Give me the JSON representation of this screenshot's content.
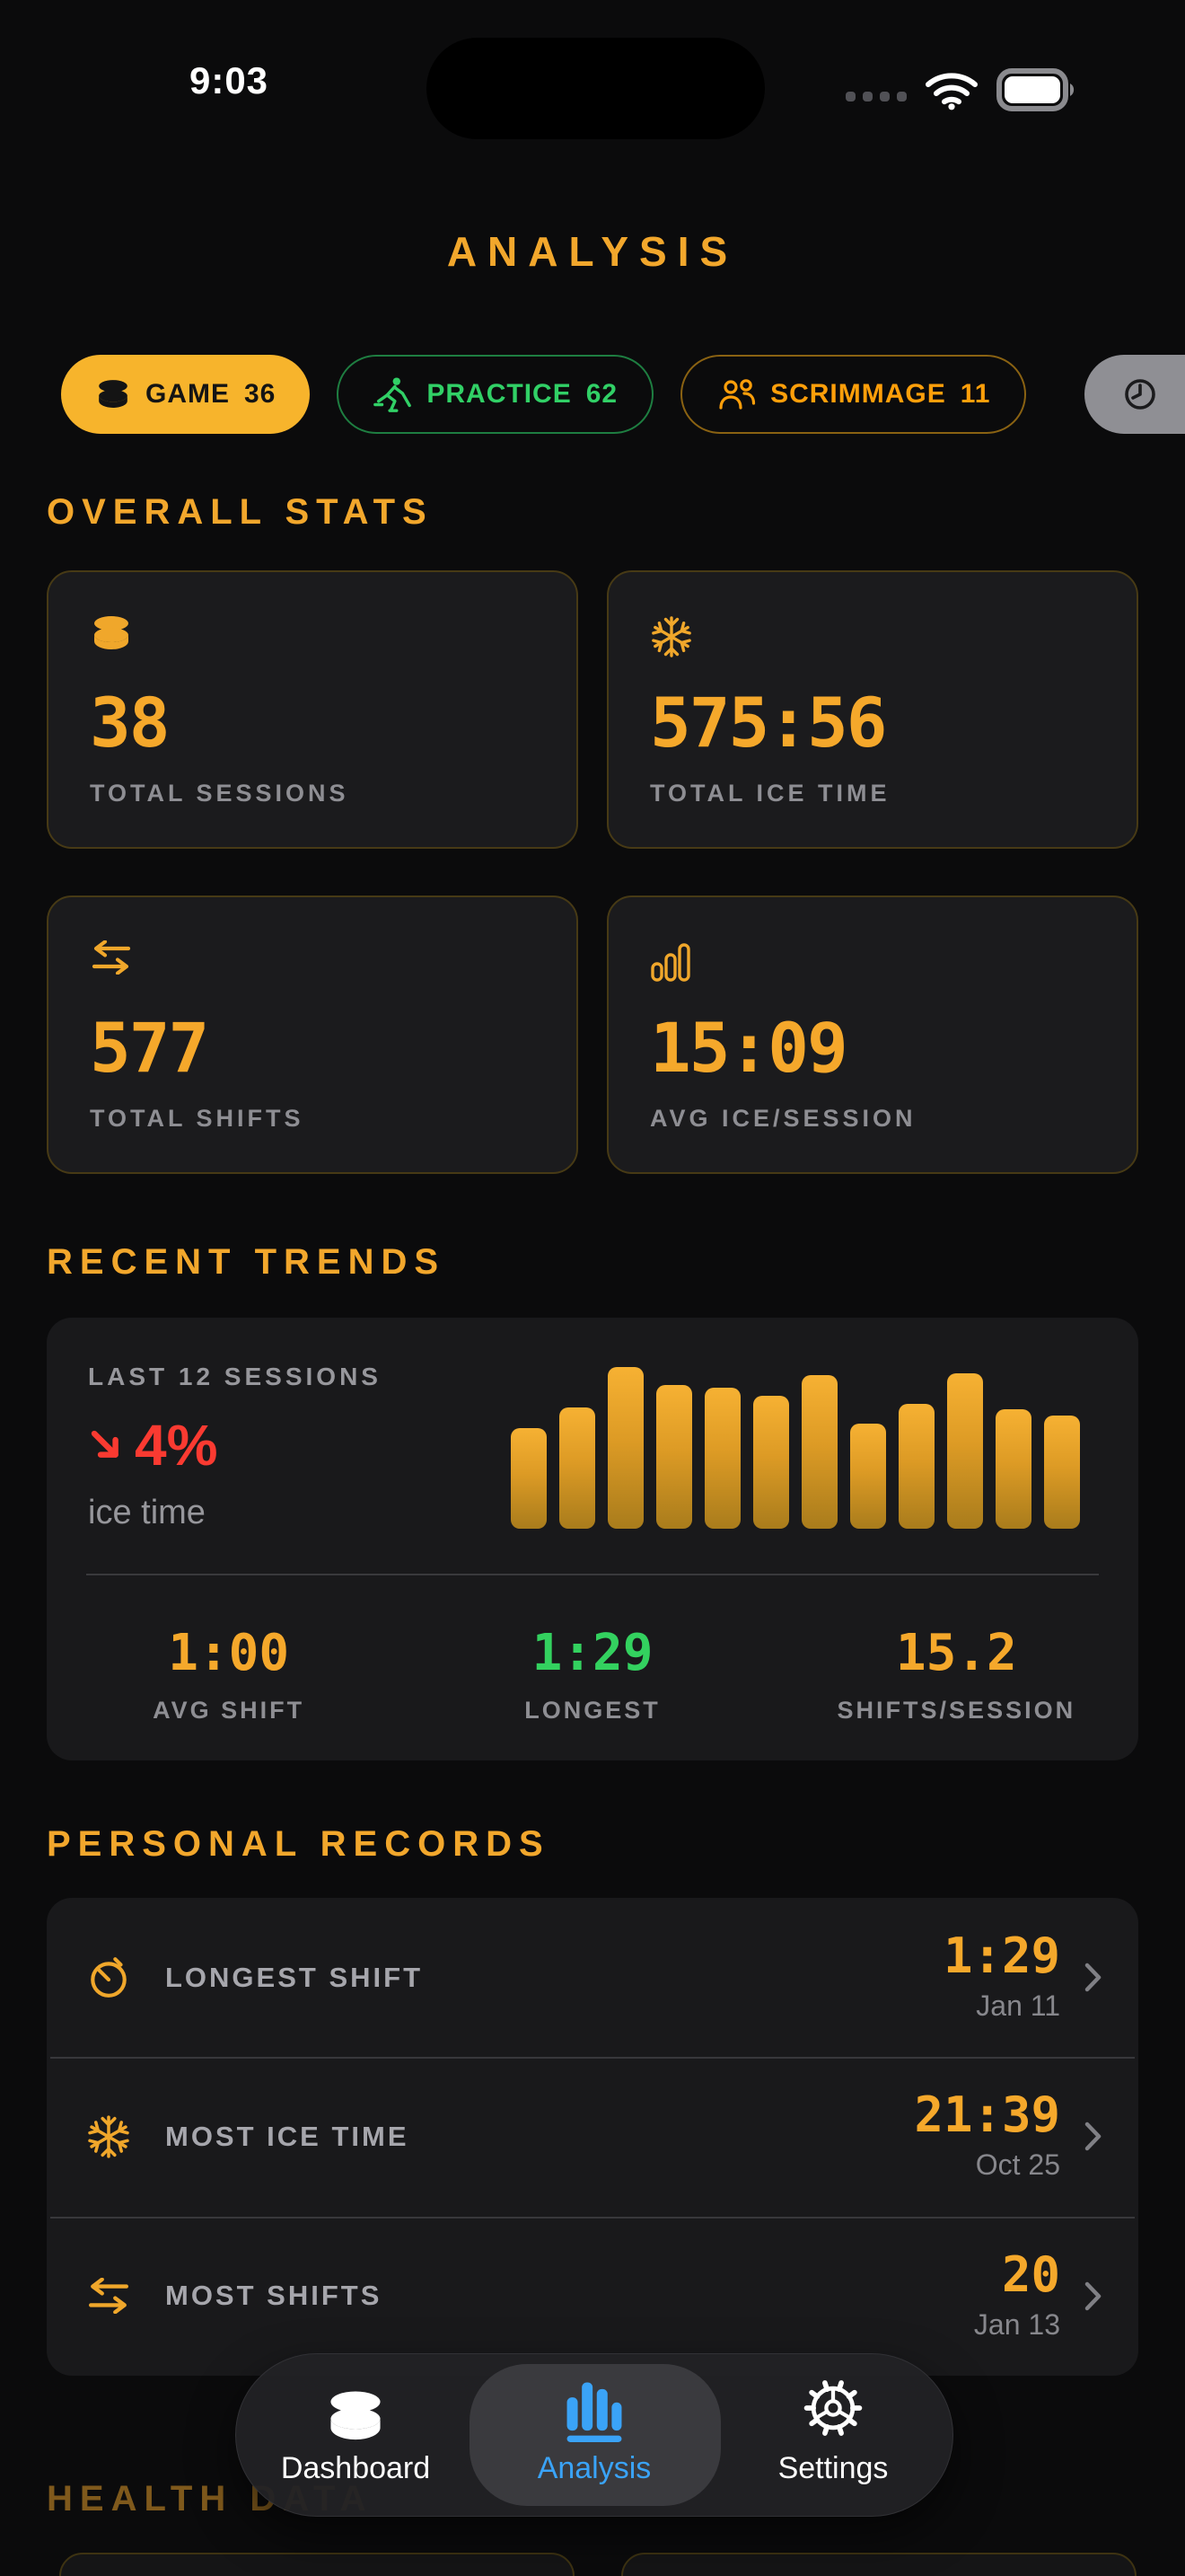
{
  "status_bar": {
    "time": "9:03"
  },
  "header": {
    "title": "ANALYSIS"
  },
  "filter_chips": [
    {
      "label": "GAME",
      "count": "36",
      "icon": "puck-icon",
      "style": "filled-gold"
    },
    {
      "label": "PRACTICE",
      "count": "62",
      "icon": "skater-icon",
      "style": "outline-green"
    },
    {
      "label": "SCRIMMAGE",
      "count": "11",
      "icon": "people-icon",
      "style": "outline-orange"
    },
    {
      "label": "",
      "count": "",
      "icon": "clock-icon",
      "style": "filled-gray"
    }
  ],
  "overall_stats": {
    "heading": "OVERALL STATS",
    "cards": [
      {
        "icon": "puck-icon",
        "value": "38",
        "label": "TOTAL SESSIONS"
      },
      {
        "icon": "snowflake-icon",
        "value": "575:56",
        "label": "TOTAL ICE TIME"
      },
      {
        "icon": "shifts-arrows-icon",
        "value": "577",
        "label": "TOTAL SHIFTS"
      },
      {
        "icon": "bar-chart-icon",
        "value": "15:09",
        "label": "AVG ICE/SESSION"
      }
    ]
  },
  "recent_trends": {
    "heading": "RECENT TRENDS",
    "period_label": "LAST 12 SESSIONS",
    "change_value": "4%",
    "change_direction": "down",
    "change_metric": "ice time",
    "chart_data": {
      "type": "bar",
      "title": "LAST 12 SESSIONS",
      "ylabel": "ice time per session (% of max, estimated)",
      "values": [
        62,
        75,
        100,
        89,
        87,
        82,
        95,
        65,
        77,
        96,
        74,
        70
      ],
      "bar_color_top": "#F6B133",
      "bar_color_bottom": "#A97C1C",
      "axes_hidden": true
    },
    "summary": [
      {
        "value": "1:00",
        "label": "AVG SHIFT",
        "color": "#F5A82B"
      },
      {
        "value": "1:29",
        "label": "LONGEST",
        "color": "#33D15F"
      },
      {
        "value": "15.2",
        "label": "SHIFTS/SESSION",
        "color": "#F5A82B"
      }
    ]
  },
  "personal_records": {
    "heading": "PERSONAL RECORDS",
    "records": [
      {
        "icon": "stopwatch-icon",
        "label": "LONGEST SHIFT",
        "value": "1:29",
        "date": "Jan 11"
      },
      {
        "icon": "snowflake-icon",
        "label": "MOST ICE TIME",
        "value": "21:39",
        "date": "Oct 25"
      },
      {
        "icon": "shifts-arrows-icon",
        "label": "MOST SHIFTS",
        "value": "20",
        "date": "Jan 13"
      }
    ]
  },
  "health_section": {
    "heading": "HEALTH DATA"
  },
  "tab_bar": {
    "active_tab": "Analysis",
    "tabs": [
      {
        "label": "Dashboard",
        "icon": "puck-icon"
      },
      {
        "label": "Analysis",
        "icon": "bar-chart-icon"
      },
      {
        "label": "Settings",
        "icon": "gear-icon"
      }
    ]
  },
  "colors": {
    "page_bg": "#0B0B0C",
    "card_bg": "#1B1B1D",
    "panel_bg": "#19191B",
    "gold": "#F2A72C",
    "gold_value": "#F5A82B",
    "chip_gold_bg": "#F7B42C",
    "green": "#31D066",
    "orange": "#FF9F0A",
    "red": "#FA3A31",
    "blue": "#3AA3F7",
    "gray_text": "#8E8E93",
    "card_border": "#473A15"
  }
}
